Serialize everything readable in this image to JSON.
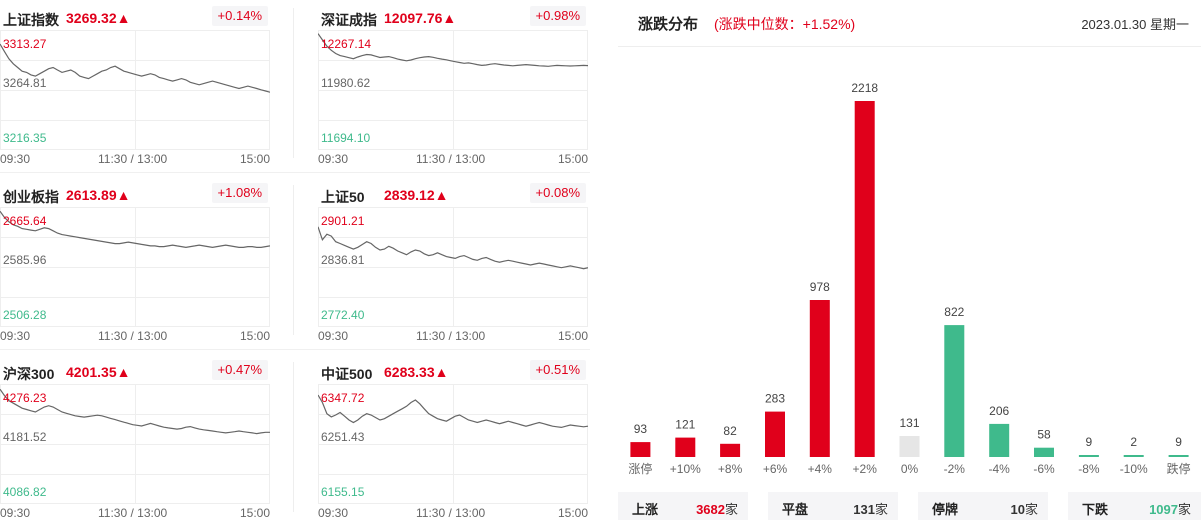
{
  "indices": [
    {
      "name": "上证指数",
      "value": "3269.32▲",
      "change": "+0.14%",
      "high": "3313.27",
      "mid": "3264.81",
      "low": "3216.35",
      "times": [
        "09:30",
        "11:30 / 13:00",
        "15:00"
      ],
      "series": [
        3302,
        3296,
        3290,
        3286,
        3283,
        3280,
        3279,
        3277,
        3276,
        3278,
        3280,
        3282,
        3283,
        3281,
        3279,
        3280,
        3281,
        3279,
        3276,
        3275,
        3274,
        3276,
        3278,
        3280,
        3281,
        3283,
        3284,
        3282,
        3280,
        3279,
        3278,
        3277,
        3276,
        3277,
        3278,
        3277,
        3275,
        3274,
        3273,
        3272,
        3273,
        3274,
        3273,
        3271,
        3270,
        3269,
        3270,
        3271,
        3272,
        3271,
        3270,
        3269,
        3268,
        3267,
        3266,
        3267,
        3268,
        3267,
        3266,
        3265,
        3264,
        3263
      ]
    },
    {
      "name": "深证成指",
      "value": "12097.76▲",
      "change": "+0.98%",
      "high": "12267.14",
      "mid": "11980.62",
      "low": "11694.10",
      "times": [
        "09:30",
        "11:30 / 13:00",
        "15:00"
      ],
      "series": [
        12250,
        12220,
        12190,
        12170,
        12155,
        12145,
        12140,
        12135,
        12130,
        12138,
        12145,
        12150,
        12148,
        12142,
        12136,
        12138,
        12140,
        12135,
        12128,
        12124,
        12120,
        12124,
        12130,
        12135,
        12138,
        12140,
        12137,
        12132,
        12128,
        12125,
        12120,
        12116,
        12112,
        12108,
        12110,
        12106,
        12102,
        12098,
        12100,
        12104,
        12106,
        12103,
        12100,
        12098,
        12096,
        12098,
        12100,
        12102,
        12100,
        12098,
        12096,
        12095,
        12094,
        12096,
        12098,
        12097,
        12096,
        12095,
        12096,
        12097,
        12098,
        12097
      ]
    },
    {
      "name": "创业板指",
      "value": "2613.89▲",
      "change": "+1.08%",
      "high": "2665.64",
      "mid": "2585.96",
      "low": "2506.28",
      "times": [
        "09:30",
        "11:30 / 13:00",
        "15:00"
      ],
      "series": [
        2660,
        2652,
        2646,
        2642,
        2640,
        2637,
        2636,
        2635,
        2634,
        2636,
        2638,
        2637,
        2634,
        2631,
        2629,
        2628,
        2627,
        2626,
        2625,
        2624,
        2623,
        2622,
        2621,
        2620,
        2619,
        2618,
        2617,
        2617,
        2618,
        2619,
        2618,
        2617,
        2616,
        2615,
        2614,
        2614,
        2613,
        2613,
        2614,
        2615,
        2614,
        2613,
        2612,
        2613,
        2614,
        2615,
        2614,
        2613,
        2612,
        2613,
        2614,
        2615,
        2614,
        2613,
        2612,
        2612,
        2613,
        2613,
        2612,
        2612,
        2613,
        2614
      ]
    },
    {
      "name": "上证50",
      "value": "2839.12▲",
      "change": "+0.08%",
      "high": "2901.21",
      "mid": "2836.81",
      "low": "2772.40",
      "times": [
        "09:30",
        "11:30 / 13:00",
        "15:00"
      ],
      "series": [
        2880,
        2866,
        2872,
        2870,
        2864,
        2862,
        2860,
        2858,
        2856,
        2858,
        2861,
        2864,
        2862,
        2858,
        2855,
        2856,
        2859,
        2857,
        2854,
        2852,
        2850,
        2853,
        2855,
        2854,
        2851,
        2849,
        2850,
        2852,
        2850,
        2848,
        2847,
        2846,
        2848,
        2849,
        2847,
        2845,
        2844,
        2846,
        2847,
        2845,
        2843,
        2842,
        2843,
        2844,
        2843,
        2842,
        2841,
        2840,
        2839,
        2840,
        2841,
        2840,
        2839,
        2838,
        2837,
        2836,
        2837,
        2838,
        2837,
        2836,
        2835,
        2836
      ]
    },
    {
      "name": "沪深300",
      "value": "4201.35▲",
      "change": "+0.47%",
      "high": "4276.23",
      "mid": "4181.52",
      "low": "4086.82",
      "times": [
        "09:30",
        "11:30 / 13:00",
        "15:00"
      ],
      "series": [
        4268,
        4258,
        4250,
        4246,
        4242,
        4238,
        4236,
        4234,
        4232,
        4236,
        4240,
        4242,
        4240,
        4236,
        4232,
        4230,
        4228,
        4226,
        4225,
        4224,
        4225,
        4226,
        4227,
        4226,
        4224,
        4222,
        4220,
        4218,
        4216,
        4214,
        4212,
        4211,
        4210,
        4212,
        4214,
        4212,
        4210,
        4208,
        4207,
        4206,
        4205,
        4206,
        4208,
        4209,
        4207,
        4205,
        4204,
        4203,
        4202,
        4201,
        4200,
        4199,
        4200,
        4201,
        4202,
        4201,
        4200,
        4199,
        4198,
        4199,
        4200,
        4200
      ]
    },
    {
      "name": "中证500",
      "value": "6283.33▲",
      "change": "+0.51%",
      "high": "6347.72",
      "mid": "6251.43",
      "low": "6155.15",
      "times": [
        "09:30",
        "11:30 / 13:00",
        "15:00"
      ],
      "series": [
        6330,
        6318,
        6300,
        6295,
        6298,
        6302,
        6296,
        6290,
        6286,
        6290,
        6296,
        6300,
        6298,
        6294,
        6290,
        6292,
        6296,
        6300,
        6304,
        6308,
        6312,
        6318,
        6322,
        6316,
        6308,
        6300,
        6296,
        6292,
        6290,
        6288,
        6292,
        6296,
        6298,
        6294,
        6290,
        6288,
        6286,
        6288,
        6290,
        6288,
        6286,
        6284,
        6286,
        6288,
        6286,
        6284,
        6282,
        6280,
        6282,
        6284,
        6286,
        6284,
        6282,
        6280,
        6279,
        6278,
        6280,
        6282,
        6281,
        6280,
        6279,
        6280
      ]
    }
  ],
  "distribution": {
    "title": "涨跌分布",
    "median": "(涨跌中位数：+1.52%)",
    "date": "2023.01.30 星期一",
    "summary": [
      {
        "label": "上涨",
        "value": "3682",
        "unit": "家",
        "color": "#e0001b"
      },
      {
        "label": "平盘",
        "value": "131",
        "unit": "家",
        "color": "#333333"
      },
      {
        "label": "停牌",
        "value": "10",
        "unit": "家",
        "color": "#333333"
      },
      {
        "label": "下跌",
        "value": "1097",
        "unit": "家",
        "color": "#3fba8c"
      }
    ]
  },
  "colors": {
    "up": "#e0001b",
    "down": "#3fba8c",
    "flat": "#e6e6e6",
    "grid": "#eeeeee",
    "line": "#666666"
  },
  "chart_data": {
    "type": "bar",
    "categories": [
      "涨停",
      "+10%",
      "+8%",
      "+6%",
      "+4%",
      "+2%",
      "0%",
      "-2%",
      "-4%",
      "-6%",
      "-8%",
      "-10%",
      "跌停"
    ],
    "values": [
      93,
      121,
      82,
      283,
      978,
      2218,
      131,
      822,
      206,
      58,
      9,
      2,
      9
    ],
    "title": "涨跌分布",
    "xlabel": "",
    "ylabel": "",
    "grid": false,
    "legend": "none"
  }
}
